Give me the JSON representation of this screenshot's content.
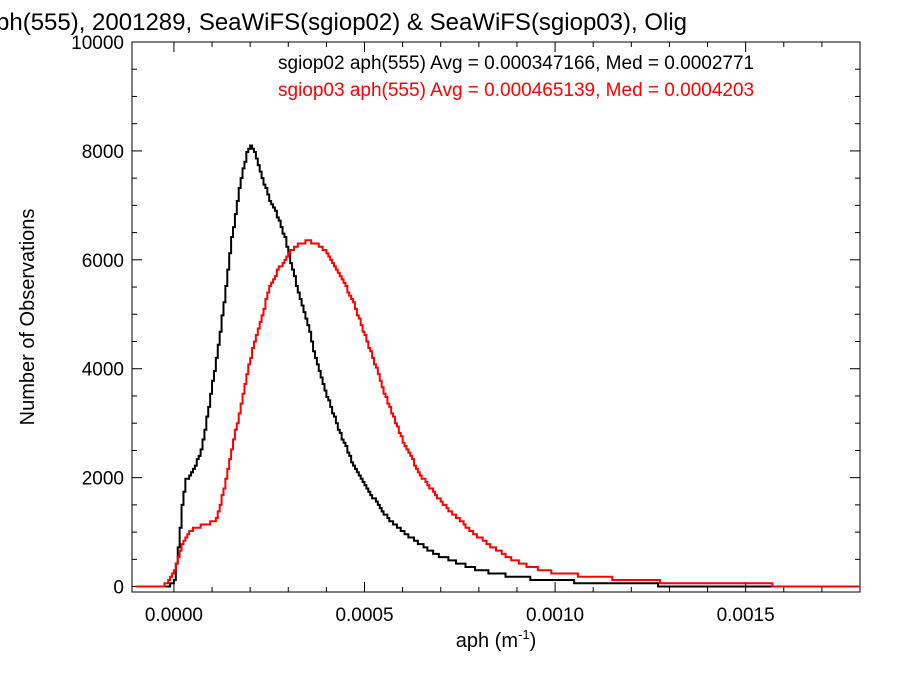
{
  "chart_data": {
    "type": "line",
    "title": "ph(555), 2001289, SeaWiFS(sgiop02) & SeaWiFS(sgiop03), Olig",
    "xlabel": "aph (m",
    "xlabel_exp": "-1",
    "xlabel_close": ")",
    "ylabel": "Number of Observations",
    "xlim": [
      -0.00011,
      0.0018
    ],
    "ylim": [
      -100,
      10000
    ],
    "xticks": [
      {
        "value": 0.0,
        "label": "0.0000"
      },
      {
        "value": 0.0005,
        "label": "0.0005"
      },
      {
        "value": 0.001,
        "label": "0.0010"
      },
      {
        "value": 0.0015,
        "label": "0.0015"
      }
    ],
    "yticks": [
      {
        "value": 0,
        "label": "0"
      },
      {
        "value": 2000,
        "label": "2000"
      },
      {
        "value": 4000,
        "label": "4000"
      },
      {
        "value": 6000,
        "label": "6000"
      },
      {
        "value": 8000,
        "label": "8000"
      },
      {
        "value": 10000,
        "label": "10000"
      }
    ],
    "grid": false,
    "legend_placement": "top-right",
    "series": [
      {
        "legend": "sgiop02 aph(555) Avg = 0.000347166, Med = 0.0002771",
        "color": "#000000",
        "points": [
          [
            -0.0001,
            0
          ],
          [
            -5e-05,
            0
          ],
          [
            -2e-05,
            0
          ],
          [
            0.0,
            100
          ],
          [
            1e-05,
            700
          ],
          [
            2e-05,
            1500
          ],
          [
            3e-05,
            1950
          ],
          [
            5e-05,
            2150
          ],
          [
            7e-05,
            2500
          ],
          [
            9e-05,
            3300
          ],
          [
            0.00011,
            4200
          ],
          [
            0.00013,
            5200
          ],
          [
            0.00015,
            6400
          ],
          [
            0.00017,
            7300
          ],
          [
            0.00019,
            8000
          ],
          [
            0.0002,
            8100
          ],
          [
            0.00021,
            8000
          ],
          [
            0.00023,
            7500
          ],
          [
            0.00025,
            7100
          ],
          [
            0.00027,
            6800
          ],
          [
            0.00029,
            6400
          ],
          [
            0.00031,
            5800
          ],
          [
            0.00033,
            5300
          ],
          [
            0.00035,
            4800
          ],
          [
            0.00037,
            4200
          ],
          [
            0.00039,
            3700
          ],
          [
            0.00041,
            3300
          ],
          [
            0.00043,
            2900
          ],
          [
            0.00045,
            2550
          ],
          [
            0.00047,
            2200
          ],
          [
            0.0005,
            1850
          ],
          [
            0.00053,
            1550
          ],
          [
            0.00056,
            1250
          ],
          [
            0.0006,
            1000
          ],
          [
            0.00065,
            750
          ],
          [
            0.0007,
            550
          ],
          [
            0.00075,
            420
          ],
          [
            0.0008,
            300
          ],
          [
            0.00085,
            230
          ],
          [
            0.0009,
            170
          ],
          [
            0.001,
            110
          ],
          [
            0.0011,
            70
          ],
          [
            0.0012,
            40
          ],
          [
            0.0013,
            25
          ],
          [
            0.0015,
            15
          ],
          [
            0.0018,
            5
          ]
        ]
      },
      {
        "legend": "sgiop03 aph(555) Avg = 0.000465139, Med = 0.0004203",
        "color": "#ff0000",
        "points": [
          [
            -0.0001,
            0
          ],
          [
            -4e-05,
            0
          ],
          [
            -2e-05,
            50
          ],
          [
            0.0,
            300
          ],
          [
            2e-05,
            750
          ],
          [
            4e-05,
            1000
          ],
          [
            6e-05,
            1100
          ],
          [
            9e-05,
            1150
          ],
          [
            0.00011,
            1250
          ],
          [
            0.00013,
            1800
          ],
          [
            0.00015,
            2500
          ],
          [
            0.00017,
            3200
          ],
          [
            0.00019,
            3900
          ],
          [
            0.00021,
            4500
          ],
          [
            0.00023,
            5000
          ],
          [
            0.00025,
            5500
          ],
          [
            0.00027,
            5800
          ],
          [
            0.00029,
            6000
          ],
          [
            0.00031,
            6200
          ],
          [
            0.00033,
            6300
          ],
          [
            0.00035,
            6350
          ],
          [
            0.00037,
            6300
          ],
          [
            0.00039,
            6200
          ],
          [
            0.00041,
            6000
          ],
          [
            0.00043,
            5750
          ],
          [
            0.00045,
            5500
          ],
          [
            0.00047,
            5200
          ],
          [
            0.00049,
            4800
          ],
          [
            0.00051,
            4400
          ],
          [
            0.00053,
            4000
          ],
          [
            0.00055,
            3550
          ],
          [
            0.00058,
            3000
          ],
          [
            0.00061,
            2500
          ],
          [
            0.00065,
            2000
          ],
          [
            0.0007,
            1550
          ],
          [
            0.00075,
            1200
          ],
          [
            0.0008,
            900
          ],
          [
            0.00085,
            650
          ],
          [
            0.0009,
            450
          ],
          [
            0.00095,
            330
          ],
          [
            0.001,
            250
          ],
          [
            0.0011,
            180
          ],
          [
            0.0012,
            120
          ],
          [
            0.0013,
            80
          ],
          [
            0.0014,
            55
          ],
          [
            0.0015,
            40
          ],
          [
            0.0016,
            25
          ],
          [
            0.0018,
            10
          ]
        ]
      }
    ]
  }
}
